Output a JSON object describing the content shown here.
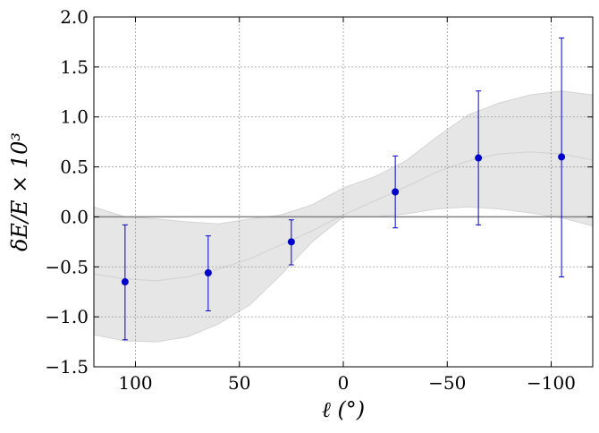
{
  "chart_data": {
    "type": "scatter",
    "xlabel": "ℓ (°)",
    "ylabel": "δE/E × 10³",
    "xlim": [
      120,
      -120
    ],
    "ylim": [
      -1.5,
      2.0
    ],
    "x_ticks": [
      100,
      50,
      0,
      -50,
      -100
    ],
    "x_tick_labels": [
      "100",
      "50",
      "0",
      "−50",
      "−100"
    ],
    "y_ticks": [
      2.0,
      1.5,
      1.0,
      0.5,
      0.0,
      -0.5,
      -1.0,
      -1.5
    ],
    "y_tick_labels": [
      "2.0",
      "1.5",
      "1.0",
      "0.5",
      "0.0",
      "−0.5",
      "−1.0",
      "−1.5"
    ],
    "grid": true,
    "reference_line_y": 0.0,
    "series": [
      {
        "kind": "points-with-errorbars",
        "color": "#0000cc",
        "points": [
          {
            "x": 105,
            "y": -0.65,
            "y_low": -1.23,
            "y_high": -0.08
          },
          {
            "x": 65,
            "y": -0.56,
            "y_low": -0.94,
            "y_high": -0.19
          },
          {
            "x": 25,
            "y": -0.25,
            "y_low": -0.48,
            "y_high": -0.03
          },
          {
            "x": -25,
            "y": 0.25,
            "y_low": -0.11,
            "y_high": 0.61
          },
          {
            "x": -65,
            "y": 0.59,
            "y_low": -0.08,
            "y_high": 1.26
          },
          {
            "x": -105,
            "y": 0.6,
            "y_low": -0.6,
            "y_high": 1.79
          }
        ]
      },
      {
        "kind": "model-band",
        "fill_color": "#e6e6e6",
        "line_color": "#d4d4d4",
        "x": [
          120,
          105,
          90,
          75,
          60,
          45,
          30,
          15,
          0,
          -15,
          -30,
          -45,
          -60,
          -75,
          -90,
          -105,
          -120
        ],
        "center": [
          -0.57,
          -0.62,
          -0.64,
          -0.6,
          -0.52,
          -0.42,
          -0.28,
          -0.14,
          0.02,
          0.16,
          0.3,
          0.45,
          0.56,
          0.63,
          0.65,
          0.63,
          0.57
        ],
        "lower": [
          -1.18,
          -1.24,
          -1.25,
          -1.2,
          -1.07,
          -0.88,
          -0.58,
          -0.25,
          0.0,
          0.0,
          0.03,
          0.08,
          0.1,
          0.08,
          0.04,
          -0.01,
          -0.09
        ],
        "upper": [
          0.1,
          0.0,
          -0.02,
          -0.05,
          -0.07,
          -0.02,
          0.02,
          0.12,
          0.29,
          0.4,
          0.56,
          0.8,
          1.02,
          1.14,
          1.22,
          1.26,
          1.22
        ]
      }
    ]
  }
}
